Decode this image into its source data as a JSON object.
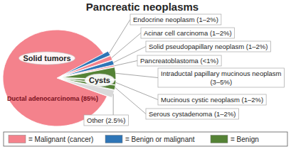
{
  "chart_data": {
    "type": "pie",
    "title": "Pancreatic neoplasms",
    "categories": [
      "Ductal adenocarcinoma (85%)",
      "Endocrine neoplasm (1–2%)",
      "Acinar cell carcinoma (1–2%)",
      "Solid pseudopapillary neoplasm (1–2%)",
      "Pancreatoblastoma (<1%)",
      "Intraductal papillary mucinous neoplasm (3–5%)",
      "Mucinous cystic neoplasm (1–2%)",
      "Serous cystadenoma (1–2%)",
      "Other (2.5%)"
    ],
    "values": [
      85,
      1.5,
      1.5,
      1.5,
      0.5,
      4,
      1.5,
      1.5,
      2.5
    ],
    "colors": [
      "#f4828c",
      "#2e75b6",
      "#f4828c",
      "#2e75b6",
      "#f4828c",
      "#548235",
      "#548235",
      "#548235",
      "#d9d9d9"
    ],
    "annotations": [
      "Solid tumors",
      "Cysts"
    ],
    "legend_entries": [
      {
        "label": "= Malignant (cancer)",
        "color": "#f4828c"
      },
      {
        "label": "= Benign or malignant",
        "color": "#2e75b6"
      },
      {
        "label": "= Benign",
        "color": "#548235"
      }
    ]
  }
}
